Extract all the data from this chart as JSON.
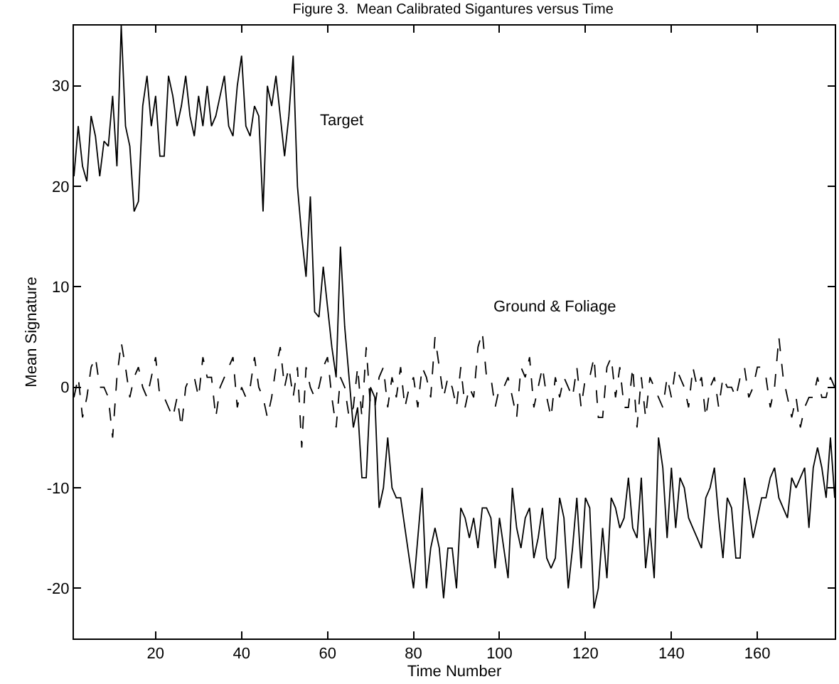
{
  "chart_data": {
    "type": "line",
    "title": "Figure 3.  Mean Calibrated Sigantures versus Time",
    "xlabel": "Time Number",
    "ylabel": "Mean Signature",
    "x": [
      1,
      2,
      3,
      4,
      5,
      6,
      7,
      8,
      9,
      10,
      11,
      12,
      13,
      14,
      15,
      16,
      17,
      18,
      19,
      20,
      21,
      22,
      23,
      24,
      25,
      26,
      27,
      28,
      29,
      30,
      31,
      32,
      33,
      34,
      35,
      36,
      37,
      38,
      39,
      40,
      41,
      42,
      43,
      44,
      45,
      46,
      47,
      48,
      49,
      50,
      51,
      52,
      53,
      54,
      55,
      56,
      57,
      58,
      59,
      60,
      61,
      62,
      63,
      64,
      65,
      66,
      67,
      68,
      69,
      70,
      71,
      72,
      73,
      74,
      75,
      76,
      77,
      78,
      79,
      80,
      81,
      82,
      83,
      84,
      85,
      86,
      87,
      88,
      89,
      90,
      91,
      92,
      93,
      94,
      95,
      96,
      97,
      98,
      99,
      100,
      101,
      102,
      103,
      104,
      105,
      106,
      107,
      108,
      109,
      110,
      111,
      112,
      113,
      114,
      115,
      116,
      117,
      118,
      119,
      120,
      121,
      122,
      123,
      124,
      125,
      126,
      127,
      128,
      129,
      130,
      131,
      132,
      133,
      134,
      135,
      136,
      137,
      138,
      139,
      140,
      141,
      142,
      143,
      144,
      145,
      146,
      147,
      148,
      149,
      150,
      151,
      152,
      153,
      154,
      155,
      156,
      157,
      158,
      159,
      160,
      161,
      162,
      163,
      164,
      165,
      166,
      167,
      168,
      169,
      170,
      171,
      172,
      173,
      174,
      175,
      176,
      177,
      178
    ],
    "series": [
      {
        "name": "Target",
        "color": "#000000",
        "line_style": "solid",
        "values": [
          21,
          26,
          22,
          20.5,
          27,
          25,
          21,
          24.5,
          24,
          29,
          22,
          36,
          26,
          24,
          17.5,
          18.5,
          28,
          31,
          26,
          29,
          23,
          23,
          31,
          29,
          26,
          28,
          31,
          27,
          25,
          29,
          26,
          30,
          26,
          27,
          29,
          31,
          26,
          25,
          30,
          33,
          26,
          25,
          28,
          27,
          17.5,
          30,
          28,
          31,
          27,
          23,
          27,
          33,
          20,
          15,
          11,
          19,
          7.5,
          7,
          12,
          8,
          4,
          1,
          14,
          6,
          1,
          -4,
          -2,
          -9,
          -9,
          0,
          -1,
          -12,
          -10,
          -5,
          -10,
          -11,
          -11,
          -14,
          -17,
          -20,
          -15,
          -10,
          -20,
          -16,
          -14,
          -16,
          -21,
          -16,
          -16,
          -20,
          -12,
          -13,
          -15,
          -13,
          -16,
          -12,
          -12,
          -13,
          -18,
          -13,
          -16,
          -19,
          -10,
          -14,
          -16,
          -13,
          -12,
          -17,
          -15,
          -12,
          -17,
          -18,
          -17,
          -11,
          -13,
          -20,
          -16,
          -11,
          -18,
          -11,
          -12,
          -22,
          -20,
          -14,
          -19,
          -11,
          -12,
          -14,
          -13,
          -9,
          -14,
          -15,
          -9,
          -18,
          -14,
          -19,
          -5,
          -8,
          -15,
          -8,
          -14,
          -9,
          -10,
          -13,
          -14,
          -15,
          -16,
          -11,
          -10,
          -8,
          -13,
          -17,
          -11,
          -12,
          -17,
          -17,
          -9,
          -12,
          -15,
          -13,
          -11,
          -11,
          -9,
          -8,
          -11,
          -12,
          -13,
          -9,
          -10,
          -9,
          -8,
          -14,
          -8,
          -6,
          -8,
          -11,
          -5,
          -11
        ]
      },
      {
        "name": "Ground & Foliage",
        "color": "#000000",
        "line_style": "dashed",
        "values": [
          -1,
          1,
          -3,
          -1,
          2,
          3,
          0,
          0,
          -1,
          -5,
          1,
          4.5,
          2,
          -1,
          1,
          2,
          0,
          -1,
          1,
          3,
          -1,
          -1,
          -2,
          -3,
          -1,
          -4,
          0,
          1,
          1,
          -1,
          3,
          1,
          1,
          -3,
          0,
          1,
          2,
          3,
          -2,
          0,
          -1,
          0,
          3,
          0,
          -1,
          -3,
          -1,
          2,
          4,
          0,
          2,
          -1,
          2,
          -6,
          2,
          0,
          -1,
          0,
          2,
          3,
          -1,
          -4,
          1,
          0,
          -3,
          -2,
          2,
          -3,
          4,
          -2,
          -2,
          1,
          2,
          -2,
          1,
          -1,
          2,
          -2,
          0,
          1,
          -2,
          2,
          1,
          -1,
          5,
          2,
          -1,
          1,
          0,
          -2,
          2,
          -2,
          0,
          -1,
          4,
          5.5,
          1,
          1,
          -2,
          0,
          0,
          1,
          -1,
          -3,
          2,
          1,
          3,
          -2,
          0,
          2,
          -1,
          -3,
          1,
          -1,
          1,
          0,
          -1,
          2,
          -2,
          1,
          1,
          3,
          -3,
          -3,
          2,
          3,
          -1,
          2,
          -2,
          -2,
          2,
          -4,
          1,
          -3,
          1,
          0,
          -1,
          -2,
          1,
          -1,
          2,
          1,
          0,
          -2,
          2,
          0,
          1,
          -3,
          0,
          1,
          -2,
          1,
          0,
          0,
          -1,
          1,
          2,
          -1,
          0,
          2,
          2,
          1,
          -2,
          0,
          5,
          1,
          -1,
          -3,
          -1,
          -4,
          -2,
          -1,
          -1,
          1,
          -1,
          -1,
          1,
          0
        ]
      }
    ],
    "xlim": [
      1,
      178
    ],
    "xticks": [
      20,
      40,
      60,
      80,
      100,
      120,
      140,
      160
    ],
    "ylim": [
      -25,
      36
    ],
    "yticks": [
      -20,
      -10,
      0,
      10,
      20,
      30
    ],
    "legend": false
  }
}
